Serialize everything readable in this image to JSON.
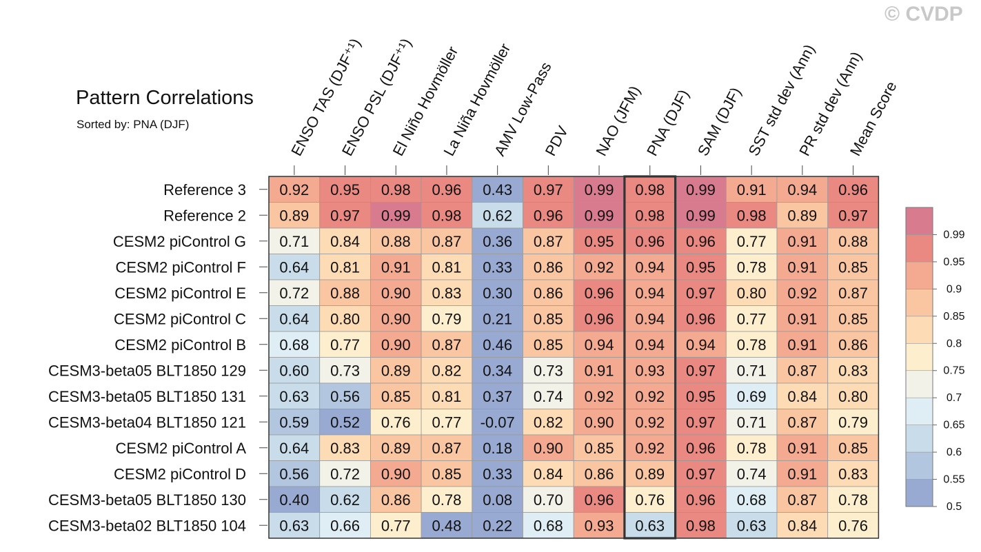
{
  "watermark": "© CVDP",
  "chart_data": {
    "type": "heatmap",
    "title": "Pattern Correlations",
    "subtitle": "Sorted by: PNA (DJF)",
    "highlighted_column": "PNA (DJF)",
    "columns": [
      "ENSO TAS (DJF⁺¹)",
      "ENSO PSL (DJF⁺¹)",
      "El Niño Hovmöller",
      "La Niña Hovmöller",
      "AMV Low-Pass",
      "PDV",
      "NAO (JFM)",
      "PNA (DJF)",
      "SAM (DJF)",
      "SST std dev (Ann)",
      "PR std dev (Ann)",
      "Mean Score"
    ],
    "rows": [
      "Reference 3",
      "Reference 2",
      "CESM2 piControl G",
      "CESM2 piControl F",
      "CESM2 piControl E",
      "CESM2 piControl C",
      "CESM2 piControl B",
      "CESM3-beta05 BLT1850 129",
      "CESM3-beta05 BLT1850 131",
      "CESM3-beta04 BLT1850 121",
      "CESM2 piControl A",
      "CESM2 piControl D",
      "CESM3-beta05 BLT1850 130",
      "CESM3-beta02 BLT1850 104"
    ],
    "values": [
      [
        "0.92",
        "0.95",
        "0.98",
        "0.96",
        "0.43",
        "0.97",
        "0.99",
        "0.98",
        "0.99",
        "0.91",
        "0.94",
        "0.96"
      ],
      [
        "0.89",
        "0.97",
        "0.99",
        "0.98",
        "0.62",
        "0.96",
        "0.99",
        "0.98",
        "0.99",
        "0.98",
        "0.89",
        "0.97"
      ],
      [
        "0.71",
        "0.84",
        "0.88",
        "0.87",
        "0.36",
        "0.87",
        "0.95",
        "0.96",
        "0.96",
        "0.77",
        "0.91",
        "0.88"
      ],
      [
        "0.64",
        "0.81",
        "0.91",
        "0.81",
        "0.33",
        "0.86",
        "0.92",
        "0.94",
        "0.95",
        "0.78",
        "0.91",
        "0.85"
      ],
      [
        "0.72",
        "0.88",
        "0.90",
        "0.83",
        "0.30",
        "0.86",
        "0.96",
        "0.94",
        "0.97",
        "0.80",
        "0.92",
        "0.87"
      ],
      [
        "0.64",
        "0.80",
        "0.90",
        "0.79",
        "0.21",
        "0.85",
        "0.96",
        "0.94",
        "0.96",
        "0.77",
        "0.91",
        "0.85"
      ],
      [
        "0.68",
        "0.77",
        "0.90",
        "0.87",
        "0.46",
        "0.85",
        "0.94",
        "0.94",
        "0.94",
        "0.78",
        "0.91",
        "0.86"
      ],
      [
        "0.60",
        "0.73",
        "0.89",
        "0.82",
        "0.34",
        "0.73",
        "0.91",
        "0.93",
        "0.97",
        "0.71",
        "0.87",
        "0.83"
      ],
      [
        "0.63",
        "0.56",
        "0.85",
        "0.81",
        "0.37",
        "0.74",
        "0.92",
        "0.92",
        "0.95",
        "0.69",
        "0.84",
        "0.80"
      ],
      [
        "0.59",
        "0.52",
        "0.76",
        "0.77",
        "-0.07",
        "0.82",
        "0.90",
        "0.92",
        "0.97",
        "0.71",
        "0.87",
        "0.79"
      ],
      [
        "0.64",
        "0.83",
        "0.89",
        "0.87",
        "0.18",
        "0.90",
        "0.85",
        "0.92",
        "0.96",
        "0.78",
        "0.91",
        "0.85"
      ],
      [
        "0.56",
        "0.72",
        "0.90",
        "0.85",
        "0.33",
        "0.84",
        "0.86",
        "0.89",
        "0.97",
        "0.74",
        "0.91",
        "0.83"
      ],
      [
        "0.40",
        "0.62",
        "0.86",
        "0.78",
        "0.08",
        "0.70",
        "0.96",
        "0.76",
        "0.96",
        "0.68",
        "0.87",
        "0.78"
      ],
      [
        "0.63",
        "0.66",
        "0.77",
        "0.48",
        "0.22",
        "0.68",
        "0.93",
        "0.63",
        "0.98",
        "0.63",
        "0.84",
        "0.76"
      ]
    ],
    "colorbar": {
      "ticks": [
        "0.99",
        "0.95",
        "0.9",
        "0.85",
        "0.8",
        "0.75",
        "0.7",
        "0.65",
        "0.6",
        "0.55",
        "0.5"
      ],
      "levels": [
        0.5,
        0.55,
        0.6,
        0.65,
        0.7,
        0.75,
        0.8,
        0.85,
        0.9,
        0.95,
        0.99
      ],
      "colors": [
        "#98a9d2",
        "#b3c6df",
        "#c8dcea",
        "#dfeef4",
        "#f3f2e8",
        "#fdefce",
        "#fddbb5",
        "#f9c6a1",
        "#f4aa90",
        "#e98982",
        "#d97b8f"
      ]
    }
  }
}
